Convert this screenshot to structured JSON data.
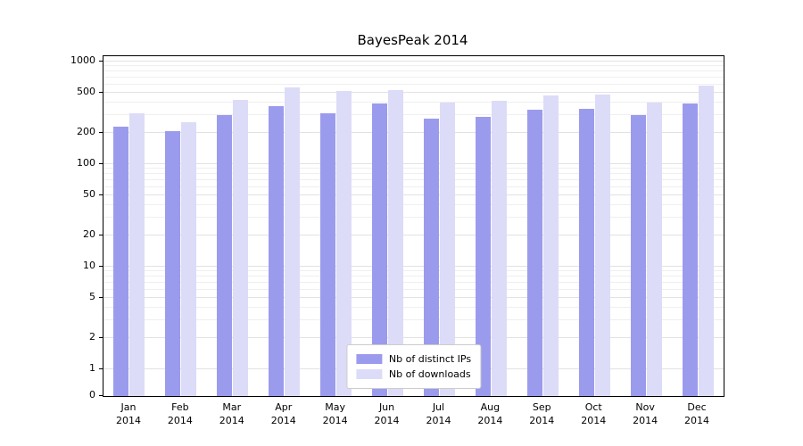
{
  "title": "BayesPeak 2014",
  "colors": {
    "ips_bar": "#9b9bee",
    "downloads_bar": "#dcdcf8",
    "grid_major": "#e2e2e2",
    "grid_minor": "#efefef",
    "axis": "#000000"
  },
  "legend": {
    "position": "lower center",
    "items": [
      {
        "label": "Nb of distinct IPs",
        "series": "ips"
      },
      {
        "label": "Nb of downloads",
        "series": "downloads"
      }
    ]
  },
  "chart_data": {
    "type": "bar",
    "title": "BayesPeak 2014",
    "categories": [
      "Jan",
      "Feb",
      "Mar",
      "Apr",
      "May",
      "Jun",
      "Jul",
      "Aug",
      "Sep",
      "Oct",
      "Nov",
      "Dec"
    ],
    "year_label": "2014",
    "series": [
      {
        "name": "Nb of distinct IPs",
        "values": [
          230,
          210,
          300,
          370,
          315,
          390,
          275,
          290,
          340,
          345,
          300,
          390
        ]
      },
      {
        "name": "Nb of downloads",
        "values": [
          310,
          255,
          420,
          555,
          520,
          530,
          395,
          415,
          470,
          480,
          400,
          580
        ]
      }
    ],
    "xlabel": "",
    "ylabel": "",
    "yscale": "symlog",
    "yticks": [
      0,
      1,
      2,
      5,
      10,
      20,
      50,
      100,
      200,
      500,
      1000
    ],
    "ylim": [
      0,
      1100
    ],
    "grid": "on",
    "legend_position": "lower center"
  }
}
